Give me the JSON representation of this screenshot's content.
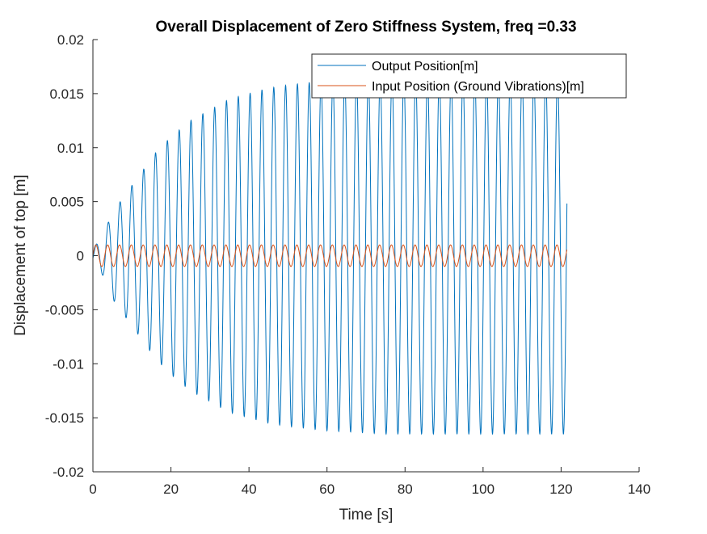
{
  "chart_data": {
    "type": "line",
    "title": "Overall Displacement of Zero Stiffness System, freq =0.33",
    "xlabel": "Time [s]",
    "ylabel": "Displacement of top [m]",
    "xlim": [
      0,
      140
    ],
    "ylim": [
      -0.02,
      0.02
    ],
    "xticks": [
      0,
      20,
      40,
      60,
      80,
      100,
      120,
      140
    ],
    "yticks": [
      -0.02,
      -0.015,
      -0.01,
      -0.005,
      0,
      0.005,
      0.01,
      0.015,
      0.02
    ],
    "xtick_labels": [
      "0",
      "20",
      "40",
      "60",
      "80",
      "100",
      "120",
      "140"
    ],
    "ytick_labels": [
      "-0.02",
      "-0.015",
      "-0.01",
      "-0.005",
      "0",
      "0.005",
      "0.01",
      "0.015",
      "0.02"
    ],
    "grid": false,
    "legend_position": "top-right",
    "series": [
      {
        "name": "Output Position[m]",
        "color": "#0072BD",
        "frequency_hz": 0.33,
        "x_range": [
          0,
          121.5
        ],
        "envelope": {
          "t": [
            0,
            2,
            5,
            8,
            12,
            16,
            20,
            25,
            30,
            35,
            40,
            45,
            50,
            55,
            60,
            65,
            70,
            75,
            80,
            85,
            90,
            95,
            100,
            105,
            110,
            115,
            121.5
          ],
          "amplitude": [
            0.0008,
            0.0014,
            0.004,
            0.0055,
            0.0075,
            0.0095,
            0.011,
            0.0125,
            0.0135,
            0.0145,
            0.015,
            0.0155,
            0.0158,
            0.016,
            0.0162,
            0.0163,
            0.0164,
            0.0165,
            0.0165,
            0.0165,
            0.0165,
            0.0165,
            0.0165,
            0.0165,
            0.0165,
            0.0165,
            0.0165
          ]
        }
      },
      {
        "name": "Input Position (Ground Vibrations)[m]",
        "color": "#D95319",
        "frequency_hz": 0.33,
        "x_range": [
          0,
          121.5
        ],
        "amplitude": 0.001
      }
    ]
  }
}
